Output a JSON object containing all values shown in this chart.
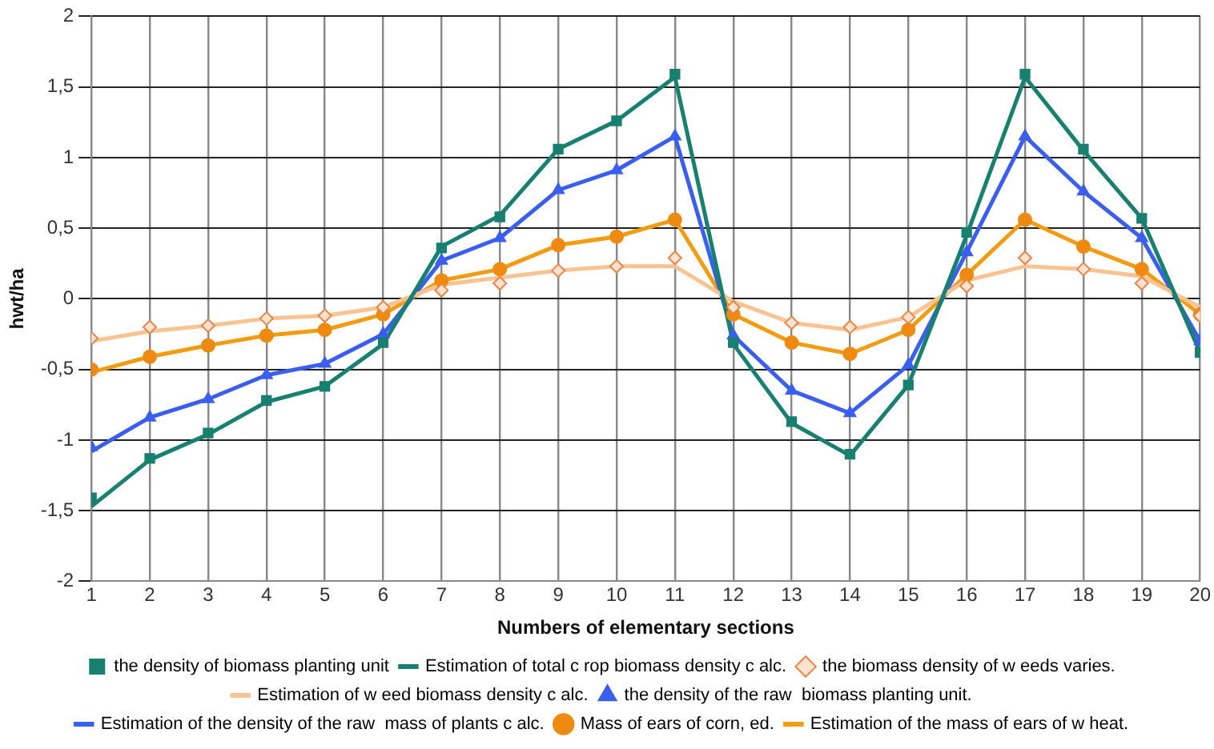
{
  "chart_data": {
    "type": "line",
    "xlabel": "Numbers of elementary sections",
    "ylabel": "hwt/ha",
    "x": [
      1,
      2,
      3,
      4,
      5,
      6,
      7,
      8,
      9,
      10,
      11,
      12,
      13,
      14,
      15,
      16,
      17,
      18,
      19,
      20
    ],
    "xlim": [
      1,
      20
    ],
    "xticks": [
      1,
      2,
      3,
      4,
      5,
      6,
      7,
      8,
      9,
      10,
      11,
      12,
      13,
      14,
      15,
      16,
      17,
      18,
      19,
      20
    ],
    "ylim": [
      -2,
      2
    ],
    "yticks": [
      -2,
      {
        "value": -1.5,
        "label": "-1,5"
      },
      -1,
      {
        "value": -0.5,
        "label": "-0,5"
      },
      0,
      {
        "value": 0.5,
        "label": "0,5"
      },
      1,
      {
        "value": 1.5,
        "label": "1,5"
      },
      2
    ],
    "grid": true,
    "legend": "bottom",
    "series": [
      {
        "name": "the density of biomass planting unit",
        "type": "scatter",
        "marker": "square",
        "color": "#178070",
        "values": [
          -1.41,
          -1.13,
          -0.95,
          -0.72,
          -0.62,
          -0.31,
          0.36,
          0.58,
          1.06,
          1.26,
          1.59,
          -0.31,
          -0.87,
          -1.1,
          -0.61,
          0.47,
          1.59,
          1.06,
          0.57,
          -0.38
        ]
      },
      {
        "name": "the biomass density of w eeds varies.",
        "type": "scatter",
        "marker": "diamond",
        "color": "#e8864a",
        "values": [
          -0.28,
          -0.2,
          -0.19,
          -0.14,
          -0.12,
          -0.06,
          0.06,
          0.11,
          0.2,
          0.23,
          0.29,
          -0.06,
          -0.17,
          -0.2,
          -0.13,
          0.09,
          0.29,
          0.21,
          0.11,
          -0.12
        ]
      },
      {
        "name": "the density of the raw  biomass planting unit.",
        "type": "scatter",
        "marker": "triangle",
        "color": "#3a5ff0",
        "values": [
          -1.05,
          -0.84,
          -0.71,
          -0.54,
          -0.46,
          -0.25,
          0.27,
          0.43,
          0.77,
          0.91,
          1.15,
          -0.26,
          -0.65,
          -0.81,
          -0.47,
          0.33,
          1.15,
          0.76,
          0.43,
          -0.3
        ]
      },
      {
        "name": "Mass of ears of corn, ed.",
        "type": "scatter",
        "marker": "circle",
        "color": "#ee8a10",
        "values": [
          -0.5,
          -0.41,
          -0.33,
          -0.26,
          -0.22,
          -0.11,
          0.13,
          0.21,
          0.38,
          0.44,
          0.56,
          -0.11,
          -0.31,
          -0.39,
          -0.22,
          0.17,
          0.56,
          0.37,
          0.21,
          -0.11
        ]
      },
      {
        "name": "Estimation of total c rop biomass density c alc.",
        "type": "line",
        "marker": "none",
        "color": "#178070",
        "values": [
          -1.47,
          -1.14,
          -0.96,
          -0.73,
          -0.62,
          -0.32,
          0.37,
          0.59,
          1.06,
          1.26,
          1.57,
          -0.32,
          -0.88,
          -1.11,
          -0.61,
          0.45,
          1.57,
          1.05,
          0.57,
          -0.38
        ]
      },
      {
        "name": "Estimation of w eed biomass density c alc.",
        "type": "line",
        "marker": "none",
        "color": "#fac391",
        "values": [
          -0.3,
          -0.23,
          -0.19,
          -0.14,
          -0.12,
          -0.06,
          0.1,
          0.15,
          0.2,
          0.23,
          0.23,
          -0.02,
          -0.17,
          -0.22,
          -0.13,
          0.13,
          0.23,
          0.21,
          0.16,
          -0.06
        ]
      },
      {
        "name": "Estimation of the density of the raw  mass of plants c alc.",
        "type": "line",
        "marker": "none",
        "color": "#3a5ff0",
        "values": [
          -1.08,
          -0.84,
          -0.71,
          -0.54,
          -0.46,
          -0.25,
          0.27,
          0.43,
          0.77,
          0.91,
          1.15,
          -0.26,
          -0.65,
          -0.81,
          -0.47,
          0.33,
          1.15,
          0.76,
          0.43,
          -0.3
        ]
      },
      {
        "name": "Estimation of the mass of ears of w heat.",
        "type": "line",
        "marker": "none",
        "color": "#f39c12",
        "values": [
          -0.52,
          -0.41,
          -0.33,
          -0.26,
          -0.22,
          -0.11,
          0.13,
          0.21,
          0.38,
          0.44,
          0.56,
          -0.11,
          -0.31,
          -0.39,
          -0.22,
          0.17,
          0.56,
          0.37,
          0.21,
          -0.11
        ]
      }
    ]
  }
}
